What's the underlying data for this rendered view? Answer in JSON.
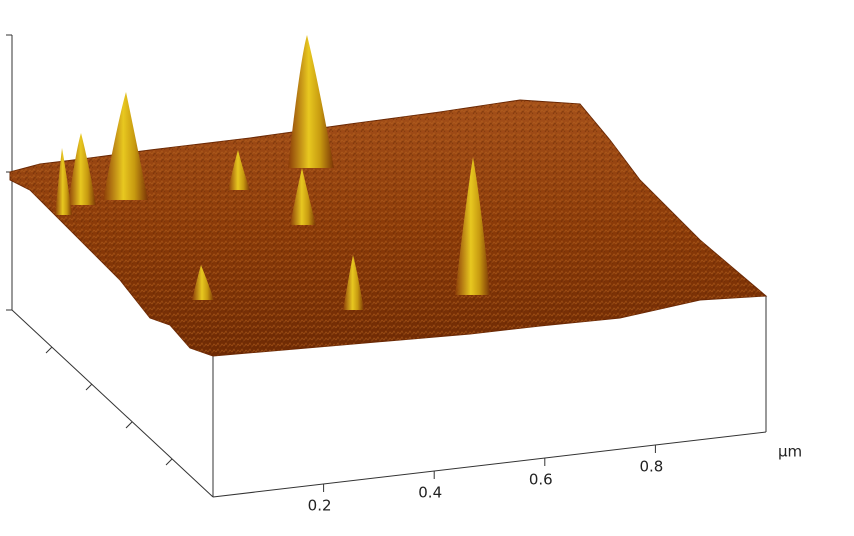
{
  "chart_data": {
    "type": "surface3d",
    "xlim": [
      0,
      1
    ],
    "xticks": [
      0.2,
      0.4,
      0.6,
      0.8
    ],
    "x_unit": "µm"
  }
}
